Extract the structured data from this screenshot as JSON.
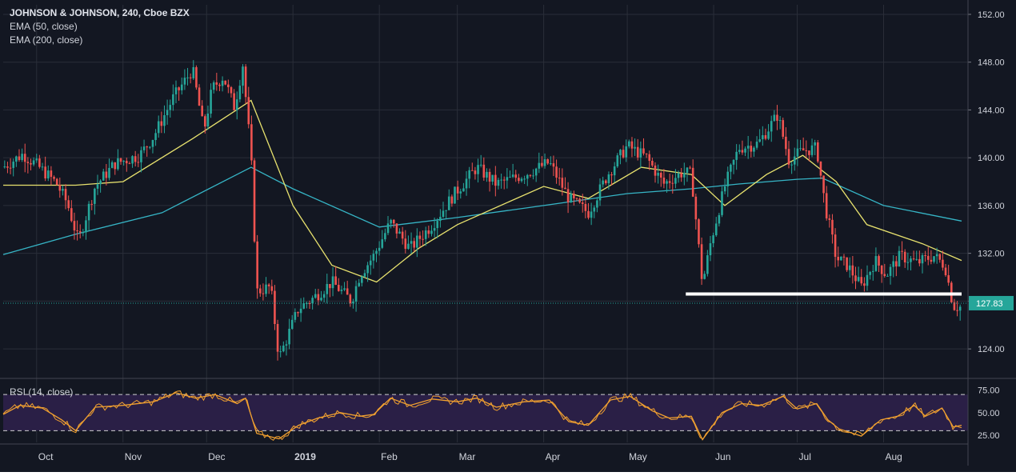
{
  "chart_data": [
    {
      "type": "candlestick",
      "title": "JOHNSON & JOHNSON, 240, Cboe BZX",
      "indicators": [
        "EMA (50, close)",
        "EMA (200, close)"
      ],
      "y_ticks": [
        "152.00",
        "148.00",
        "144.00",
        "140.00",
        "136.00",
        "132.00",
        "128.00",
        "124.00"
      ],
      "y_tick_values": [
        152,
        148,
        144,
        140,
        136,
        132,
        128,
        124
      ],
      "ylim": [
        121.6,
        152.8
      ],
      "x_ticks": [
        "Oct",
        "Nov",
        "Dec",
        "2019",
        "Feb",
        "Mar",
        "Apr",
        "May",
        "Jun",
        "Jul",
        "Aug"
      ],
      "x_tick_dates": [
        "2018-10-01",
        "2018-11-01",
        "2018-12-01",
        "2019-01-01",
        "2019-02-01",
        "2019-03-01",
        "2019-04-01",
        "2019-05-01",
        "2019-06-01",
        "2019-07-01",
        "2019-08-01"
      ],
      "x_range": [
        "2018-09-19",
        "2019-08-29"
      ],
      "last_price": "127.83",
      "last_price_value": 127.83,
      "support_level": 128.6,
      "support_from": "2019-05-22",
      "support_to": "2019-08-29",
      "price_path": [
        [
          "2018-09-19",
          139.2
        ],
        [
          "2018-09-26",
          140.3
        ],
        [
          "2018-10-01",
          139.4
        ],
        [
          "2018-10-08",
          137.9
        ],
        [
          "2018-10-12",
          136.2
        ],
        [
          "2018-10-16",
          133.0
        ],
        [
          "2018-10-22",
          137.6
        ],
        [
          "2018-10-29",
          139.5
        ],
        [
          "2018-11-07",
          140.2
        ],
        [
          "2018-11-12",
          141.8
        ],
        [
          "2018-11-19",
          145.0
        ],
        [
          "2018-11-26",
          147.4
        ],
        [
          "2018-11-30",
          142.2
        ],
        [
          "2018-12-03",
          145.8
        ],
        [
          "2018-12-07",
          146.8
        ],
        [
          "2018-12-11",
          144.2
        ],
        [
          "2018-12-14",
          147.8
        ],
        [
          "2018-12-17",
          140.0
        ],
        [
          "2018-12-19",
          128.8
        ],
        [
          "2018-12-24",
          129.2
        ],
        [
          "2018-12-27",
          123.2
        ],
        [
          "2019-01-03",
          127.4
        ],
        [
          "2019-01-08",
          128.2
        ],
        [
          "2019-01-15",
          129.6
        ],
        [
          "2019-01-22",
          128.0
        ],
        [
          "2019-01-25",
          130.2
        ],
        [
          "2019-01-30",
          131.8
        ],
        [
          "2019-02-05",
          134.6
        ],
        [
          "2019-02-12",
          132.4
        ],
        [
          "2019-02-20",
          134.4
        ],
        [
          "2019-02-28",
          137.0
        ],
        [
          "2019-03-08",
          139.2
        ],
        [
          "2019-03-15",
          137.8
        ],
        [
          "2019-03-25",
          138.6
        ],
        [
          "2019-04-03",
          139.6
        ],
        [
          "2019-04-10",
          136.6
        ],
        [
          "2019-04-17",
          135.4
        ],
        [
          "2019-04-24",
          138.6
        ],
        [
          "2019-05-01",
          141.0
        ],
        [
          "2019-05-08",
          140.0
        ],
        [
          "2019-05-14",
          137.8
        ],
        [
          "2019-05-21",
          138.8
        ],
        [
          "2019-05-24",
          138.6
        ],
        [
          "2019-05-28",
          129.4
        ],
        [
          "2019-05-31",
          133.0
        ],
        [
          "2019-06-05",
          137.6
        ],
        [
          "2019-06-10",
          140.8
        ],
        [
          "2019-06-17",
          141.2
        ],
        [
          "2019-06-24",
          143.6
        ],
        [
          "2019-06-28",
          139.8
        ],
        [
          "2019-07-03",
          140.6
        ],
        [
          "2019-07-08",
          140.8
        ],
        [
          "2019-07-11",
          136.0
        ],
        [
          "2019-07-15",
          131.6
        ],
        [
          "2019-07-19",
          131.0
        ],
        [
          "2019-07-24",
          129.2
        ],
        [
          "2019-07-29",
          131.4
        ],
        [
          "2019-08-02",
          130.2
        ],
        [
          "2019-08-07",
          131.8
        ],
        [
          "2019-08-13",
          131.2
        ],
        [
          "2019-08-19",
          131.8
        ],
        [
          "2019-08-23",
          131.0
        ],
        [
          "2019-08-26",
          127.6
        ],
        [
          "2019-08-29",
          127.5
        ]
      ],
      "ema50_path": [
        [
          "2018-09-19",
          137.7
        ],
        [
          "2018-10-15",
          137.7
        ],
        [
          "2018-11-01",
          138.0
        ],
        [
          "2018-11-26",
          141.6
        ],
        [
          "2018-12-17",
          144.8
        ],
        [
          "2019-01-01",
          136.0
        ],
        [
          "2019-01-15",
          131.0
        ],
        [
          "2019-01-31",
          129.6
        ],
        [
          "2019-02-15",
          132.4
        ],
        [
          "2019-03-01",
          134.4
        ],
        [
          "2019-04-01",
          137.6
        ],
        [
          "2019-04-17",
          136.6
        ],
        [
          "2019-05-06",
          139.2
        ],
        [
          "2019-05-24",
          138.6
        ],
        [
          "2019-06-05",
          136.0
        ],
        [
          "2019-06-20",
          138.6
        ],
        [
          "2019-07-03",
          140.2
        ],
        [
          "2019-07-15",
          138.0
        ],
        [
          "2019-07-26",
          134.4
        ],
        [
          "2019-08-15",
          132.8
        ],
        [
          "2019-08-29",
          131.4
        ]
      ],
      "ema200_path": [
        [
          "2018-09-19",
          131.9
        ],
        [
          "2018-10-15",
          133.6
        ],
        [
          "2018-11-15",
          135.4
        ],
        [
          "2018-12-17",
          139.2
        ],
        [
          "2019-01-01",
          137.4
        ],
        [
          "2019-02-01",
          134.2
        ],
        [
          "2019-03-01",
          135.0
        ],
        [
          "2019-04-01",
          136.0
        ],
        [
          "2019-05-01",
          137.0
        ],
        [
          "2019-05-24",
          137.4
        ],
        [
          "2019-06-10",
          137.8
        ],
        [
          "2019-07-01",
          138.2
        ],
        [
          "2019-07-10",
          138.3
        ],
        [
          "2019-08-01",
          136.0
        ],
        [
          "2019-08-29",
          134.7
        ]
      ],
      "colors": {
        "background": "#131722",
        "up": "#26a69a",
        "down": "#ef5350",
        "ema50": "#e8e26e",
        "ema200": "#36b5c6",
        "support": "#ffffff",
        "last_price_bg": "#26a69a",
        "axis_text": "#d1d4dc",
        "grid": "#2a2e39"
      }
    },
    {
      "type": "line",
      "title": "RSI (14, close)",
      "y_ticks": [
        "75.00",
        "50.00",
        "25.00"
      ],
      "y_tick_values": [
        75,
        50,
        25
      ],
      "ylim": [
        17,
        87
      ],
      "bands": [
        30,
        70
      ],
      "rsi_path": [
        [
          "2018-09-19",
          48
        ],
        [
          "2018-09-25",
          58
        ],
        [
          "2018-10-03",
          55
        ],
        [
          "2018-10-10",
          42
        ],
        [
          "2018-10-15",
          30
        ],
        [
          "2018-10-22",
          56
        ],
        [
          "2018-11-01",
          58
        ],
        [
          "2018-11-12",
          62
        ],
        [
          "2018-11-20",
          72
        ],
        [
          "2018-11-27",
          66
        ],
        [
          "2018-12-04",
          70
        ],
        [
          "2018-12-12",
          60
        ],
        [
          "2018-12-15",
          66
        ],
        [
          "2018-12-19",
          27
        ],
        [
          "2018-12-27",
          21
        ],
        [
          "2019-01-03",
          36
        ],
        [
          "2019-01-10",
          44
        ],
        [
          "2019-01-18",
          50
        ],
        [
          "2019-01-25",
          46
        ],
        [
          "2019-01-30",
          48
        ],
        [
          "2019-02-05",
          66
        ],
        [
          "2019-02-12",
          58
        ],
        [
          "2019-02-20",
          65
        ],
        [
          "2019-03-01",
          62
        ],
        [
          "2019-03-08",
          66
        ],
        [
          "2019-03-15",
          56
        ],
        [
          "2019-03-25",
          62
        ],
        [
          "2019-04-03",
          64
        ],
        [
          "2019-04-10",
          40
        ],
        [
          "2019-04-17",
          36
        ],
        [
          "2019-04-25",
          64
        ],
        [
          "2019-05-02",
          68
        ],
        [
          "2019-05-10",
          52
        ],
        [
          "2019-05-16",
          44
        ],
        [
          "2019-05-24",
          46
        ],
        [
          "2019-05-28",
          20
        ],
        [
          "2019-06-04",
          50
        ],
        [
          "2019-06-11",
          60
        ],
        [
          "2019-06-18",
          58
        ],
        [
          "2019-06-26",
          68
        ],
        [
          "2019-07-01",
          54
        ],
        [
          "2019-07-08",
          60
        ],
        [
          "2019-07-12",
          42
        ],
        [
          "2019-07-16",
          32
        ],
        [
          "2019-07-24",
          24
        ],
        [
          "2019-07-31",
          42
        ],
        [
          "2019-08-06",
          46
        ],
        [
          "2019-08-12",
          58
        ],
        [
          "2019-08-16",
          46
        ],
        [
          "2019-08-22",
          55
        ],
        [
          "2019-08-26",
          34
        ],
        [
          "2019-08-29",
          36
        ]
      ],
      "colors": {
        "line": "#f0a030",
        "band_fill": "#2a1f46",
        "band_line": "#cfcfcf"
      }
    }
  ]
}
